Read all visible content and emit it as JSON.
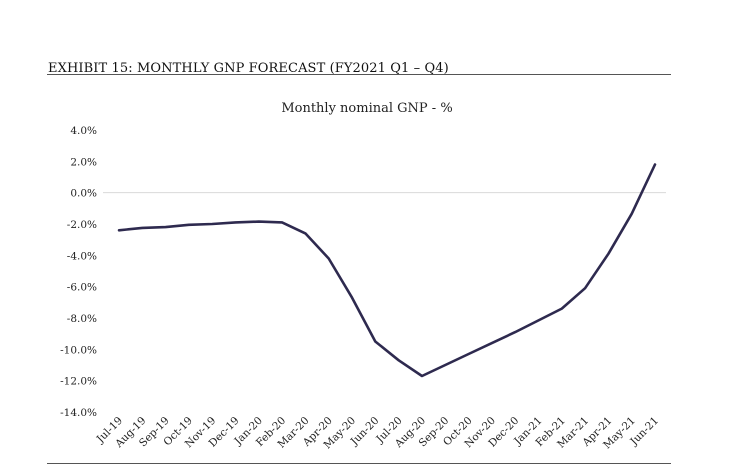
{
  "exhibit": {
    "title": "EXHIBIT 15: MONTHLY GNP FORECAST (FY2021 Q1 – Q4)"
  },
  "chart_data": {
    "type": "line",
    "title": "Monthly nominal  GNP - %",
    "xlabel": "",
    "ylabel": "",
    "categories": [
      "Jul-19",
      "Aug-19",
      "Sep-19",
      "Oct-19",
      "Nov-19",
      "Dec-19",
      "Jan-20",
      "Feb-20",
      "Mar-20",
      "Apr-20",
      "May-20",
      "Jun-20",
      "Jul-20",
      "Aug-20",
      "Sep-20",
      "Oct-20",
      "Nov-20",
      "Dec-20",
      "Jan-21",
      "Feb-21",
      "Mar-21",
      "Apr-21",
      "May-21",
      "Jun-21"
    ],
    "series": [
      {
        "name": "",
        "color": "#2e2a4f",
        "values": [
          -2.4,
          -2.25,
          -2.2,
          -2.05,
          -2.0,
          -1.9,
          -1.85,
          -1.9,
          -2.6,
          -4.2,
          -6.7,
          -9.5,
          -10.7,
          -11.7,
          -11.0,
          -10.3,
          -9.6,
          -8.9,
          -8.15,
          -7.4,
          -6.1,
          -3.9,
          -1.35,
          1.8
        ]
      }
    ],
    "ylim": [
      -14,
      4
    ],
    "yticks": [
      4,
      2,
      0,
      -2,
      -4,
      -6,
      -8,
      -10,
      -12,
      -14
    ],
    "ytick_labels": [
      "4.0%",
      "2.0%",
      "0.0%",
      "-2.0%",
      "-4.0%",
      "-6.0%",
      "-8.0%",
      "-10.0%",
      "-12.0%",
      "-14.0%"
    ],
    "grid": false,
    "legend": "none",
    "zero_line_color": "#d9d9d9"
  }
}
